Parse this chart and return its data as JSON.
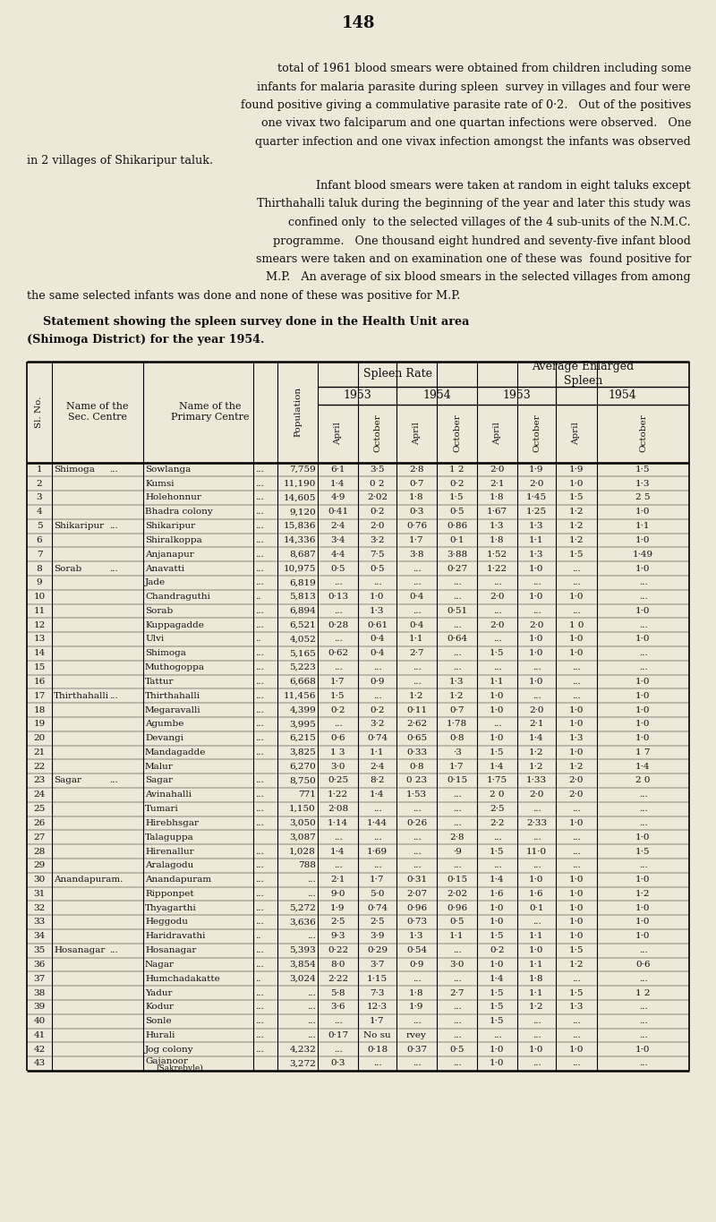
{
  "page_number": "148",
  "bg_color": "#ede8d8",
  "text_color": "#111111",
  "para1_lines": [
    "total of 1961 blood smears were obtained from children including some",
    "infants for malaria parasite during spleen  survey in villages and four were",
    "found positive giving a commulative parasite rate of 0·2.   Out of the positives",
    "one vivax two falciparum and one quartan infections were observed.   One",
    "quarter infection and one vivax infection amongst the infants was observed",
    "in 2 villages of Shikaripur taluk."
  ],
  "para2_lines": [
    "    Infant blood smears were taken at random in eight taluks except",
    "Thirthahalli taluk during the beginning of the year and later this study was",
    "confined only  to the selected villages of the 4 sub-units of the N.M.C.",
    "programme.   One thousand eight hundred and seventy-five infant blood",
    "smears were taken and on examination one of these was  found positive for",
    "M.P.   An average of six blood smears in the selected villages from among",
    "the same selected infants was done and none of these was positive for M.P."
  ],
  "para3_lines": [
    "    Statement showing the spleen survey done in the Health Unit area",
    "(Shimoga District) for the year 1954."
  ],
  "rows": [
    [
      "1",
      "Shimoga",
      "...",
      "Sowlanga",
      "...",
      "7,759",
      "6·1",
      "3·5",
      "2·8",
      "1 2",
      "2·0",
      "1·9",
      "1·9",
      "1·5"
    ],
    [
      "2",
      "",
      "",
      "Kumsi",
      "...",
      "11,190",
      "1·4",
      "0 2",
      "0·7",
      "0·2",
      "2·1",
      "2·0",
      "1·0",
      "1·3"
    ],
    [
      "3",
      "",
      "",
      "Holehonnur",
      "...",
      "14,605",
      "4·9",
      "2·02",
      "1·8",
      "1·5",
      "1·8",
      "1·45",
      "1·5",
      "2 5"
    ],
    [
      "4",
      "",
      "",
      "Bhadra colony",
      "...",
      "9,120",
      "0·41",
      "0·2",
      "0·3",
      "0·5",
      "1·67",
      "1·25",
      "1·2",
      "1·0"
    ],
    [
      "5",
      "Shikaripur",
      "...",
      "Shikaripur",
      "...",
      "15,836",
      "2·4",
      "2·0",
      "0·76",
      "0·86",
      "1·3",
      "1·3",
      "1·2",
      "1·1"
    ],
    [
      "6",
      "",
      "",
      "Shiralkoppa",
      "...",
      "14,336",
      "3·4",
      "3·2",
      "1·7",
      "0·1",
      "1·8",
      "1·1",
      "1·2",
      "1·0"
    ],
    [
      "7",
      "",
      "",
      "Anjanapur",
      "...",
      "8,687",
      "4·4",
      "7·5",
      "3·8",
      "3·88",
      "1·52",
      "1·3",
      "1·5",
      "1·49"
    ],
    [
      "8",
      "Sorab",
      "...",
      "Anavatti",
      "...",
      "10,975",
      "0·5",
      "0·5",
      "...",
      "0·27",
      "1·22",
      "1·0",
      "...",
      "1·0"
    ],
    [
      "9",
      "",
      "",
      "Jade",
      "...",
      "6,819",
      "...",
      "...",
      "...",
      "...",
      "...",
      "...",
      "...",
      "..."
    ],
    [
      "10",
      "",
      "",
      "Chandraguthi",
      "..",
      "5,813",
      "0·13",
      "1·0",
      "0·4",
      "...",
      "2·0",
      "1·0",
      "1·0",
      "..."
    ],
    [
      "11",
      "",
      "",
      "Sorab",
      "...",
      "6,894",
      "...",
      "1·3",
      "...",
      "0·51",
      "...",
      "...",
      "...",
      "1·0"
    ],
    [
      "12",
      "",
      "",
      "Kuppagadde",
      "...",
      "6,521",
      "0·28",
      "0·61",
      "0·4",
      "...",
      "2·0",
      "2·0",
      "1 0",
      "..."
    ],
    [
      "13",
      "",
      "",
      "Ulvi",
      "..",
      "4,052",
      "...",
      "0·4",
      "1·1",
      "0·64",
      "...",
      "1·0",
      "1·0",
      "1·0"
    ],
    [
      "14",
      "",
      "",
      "Shimoga",
      "...",
      "5,165",
      "0·62",
      "0·4",
      "2·7",
      "...",
      "1·5",
      "1·0",
      "1·0",
      "..."
    ],
    [
      "15",
      "",
      "",
      "Muthogoppa",
      "...",
      "5,223",
      "...",
      "...",
      "...",
      "...",
      "...",
      "...",
      "...",
      "..."
    ],
    [
      "16",
      "",
      "",
      "Tattur",
      "...",
      "6,668",
      "1·7",
      "0·9",
      "...",
      "1·3",
      "1·1",
      "1·0",
      "...",
      "1·0"
    ],
    [
      "17",
      "Thirthahalli",
      "...",
      "Thirthahalli",
      "...",
      "11,456",
      "1·5",
      "...",
      "1·2",
      "1·2",
      "1·0",
      "...",
      "...",
      "1·0"
    ],
    [
      "18",
      "",
      "",
      "Megaravalli",
      "...",
      "4,399",
      "0·2",
      "0·2",
      "0·11",
      "0·7",
      "1·0",
      "2·0",
      "1·0",
      "1·0"
    ],
    [
      "19",
      "",
      "",
      "Agumbe",
      "...",
      "3,995",
      "...",
      "3·2",
      "2·62",
      "1·78",
      "...",
      "2·1",
      "1·0",
      "1·0"
    ],
    [
      "20",
      "",
      "",
      "Devangi",
      "...",
      "6,215",
      "0·6",
      "0·74",
      "0·65",
      "0·8",
      "1·0",
      "1·4",
      "1·3",
      "1·0"
    ],
    [
      "21",
      "",
      "",
      "Mandagadde",
      "...",
      "3,825",
      "1 3",
      "1·1",
      "0·33",
      "·3",
      "1·5",
      "1·2",
      "1·0",
      "1 7"
    ],
    [
      "22",
      "",
      "",
      "Malur",
      "",
      "6,270",
      "3·0",
      "2·4",
      "0·8",
      "1·7",
      "1·4",
      "1·2",
      "1·2",
      "1·4"
    ],
    [
      "23",
      "Sagar",
      "...",
      "Sagar",
      "...",
      "8,750",
      "0·25",
      "8·2",
      "0 23",
      "0·15",
      "1·75",
      "1·33",
      "2·0",
      "2 0"
    ],
    [
      "24",
      "",
      "",
      "Avinahalli",
      "...",
      "771",
      "1·22",
      "1·4",
      "1·53",
      "...",
      "2 0",
      "2·0",
      "2·0",
      "..."
    ],
    [
      "25",
      "",
      "",
      "Tumari",
      "...",
      "1,150",
      "2·08",
      "...",
      "...",
      "...",
      "2·5",
      "...",
      "...",
      "..."
    ],
    [
      "26",
      "",
      "",
      "Hirebhsgar",
      "...",
      "3,050",
      "1·14",
      "1·44",
      "0·26",
      "...",
      "2·2",
      "2·33",
      "1·0",
      "..."
    ],
    [
      "27",
      "",
      "",
      "Talaguppa",
      "",
      "3,087",
      "...",
      "...",
      "...",
      "2·8",
      "...",
      "...",
      "...",
      "1·0"
    ],
    [
      "28",
      "",
      "",
      "Hirenallur",
      "...",
      "1,028",
      "1·4",
      "1·69",
      "...",
      "·9",
      "1·5",
      "11·0",
      "...",
      "1·5"
    ],
    [
      "29",
      "",
      "",
      "Aralagodu",
      "...",
      "788",
      "...",
      "...",
      "...",
      "...",
      "...",
      "...",
      "...",
      "..."
    ],
    [
      "30",
      "Anandapuram.",
      "",
      "Anandapuram",
      "...",
      "...",
      "2·1",
      "1·7",
      "0·31",
      "0·15",
      "1·4",
      "1·0",
      "1·0",
      "1·0"
    ],
    [
      "31",
      "",
      "",
      "Ripponpet",
      "...",
      "...",
      "9·0",
      "5·0",
      "2·07",
      "2·02",
      "1·6",
      "1·6",
      "1·0",
      "1·2"
    ],
    [
      "32",
      "",
      "",
      "Thyagarthi",
      "...",
      "5,272",
      "1·9",
      "0·74",
      "0·96",
      "0·96",
      "1·0",
      "0·1",
      "1·0",
      "1·0"
    ],
    [
      "33",
      "",
      "",
      "Heggodu",
      "...",
      "3,636",
      "2·5",
      "2·5",
      "0·73",
      "0·5",
      "1·0",
      "...",
      "1·0",
      "1·0"
    ],
    [
      "34",
      "",
      "",
      "Haridravathi",
      "..",
      "...",
      "9·3",
      "3·9",
      "1·3",
      "1·1",
      "1·5",
      "1·1",
      "1·0",
      "1·0"
    ],
    [
      "35",
      "Hosanagar",
      "...",
      "Hosanagar",
      "...",
      "5,393",
      "0·22",
      "0·29",
      "0·54",
      "...",
      "0·2",
      "1·0",
      "1·5",
      "..."
    ],
    [
      "36",
      "",
      "",
      "Nagar",
      "...",
      "3,854",
      "8·0",
      "3·7",
      "0·9",
      "3·0",
      "1·0",
      "1·1",
      "1·2",
      "0·6"
    ],
    [
      "37",
      "",
      "",
      "Humchadakatte",
      "..",
      "3,024",
      "2·22",
      "1·15",
      "...",
      "...",
      "1·4",
      "1·8",
      "...",
      "..."
    ],
    [
      "38",
      "",
      "",
      "Yadur",
      "...",
      "...",
      "5·8",
      "7·3",
      "1·8",
      "2·7",
      "1·5",
      "1·1",
      "1·5",
      "1 2"
    ],
    [
      "39",
      "",
      "",
      "Kodur",
      "...",
      "...",
      "3·6",
      "12·3",
      "1·9",
      "...",
      "1·5",
      "1·2",
      "1·3",
      "..."
    ],
    [
      "40",
      "",
      "",
      "Sonle",
      "...",
      "...",
      "...",
      "1·7",
      "...",
      "...",
      "1·5",
      "...",
      "...",
      "..."
    ],
    [
      "41",
      "",
      "",
      "Hurali",
      "...",
      "...",
      "0·17",
      "No su",
      "rvey",
      "...",
      "...",
      "...",
      "...",
      "..."
    ],
    [
      "42",
      "",
      "",
      "Jog colony",
      "...",
      "4,232",
      "...",
      "0·18",
      "0·37",
      "0·5",
      "1·0",
      "1·0",
      "1·0",
      "1·0"
    ],
    [
      "43",
      "",
      "",
      "Gajanoor",
      "",
      "3,272",
      "0·3",
      "...",
      "...",
      "...",
      "1·0",
      "...",
      "...",
      "..."
    ]
  ],
  "row43_sub": "(Sakrebyle)"
}
